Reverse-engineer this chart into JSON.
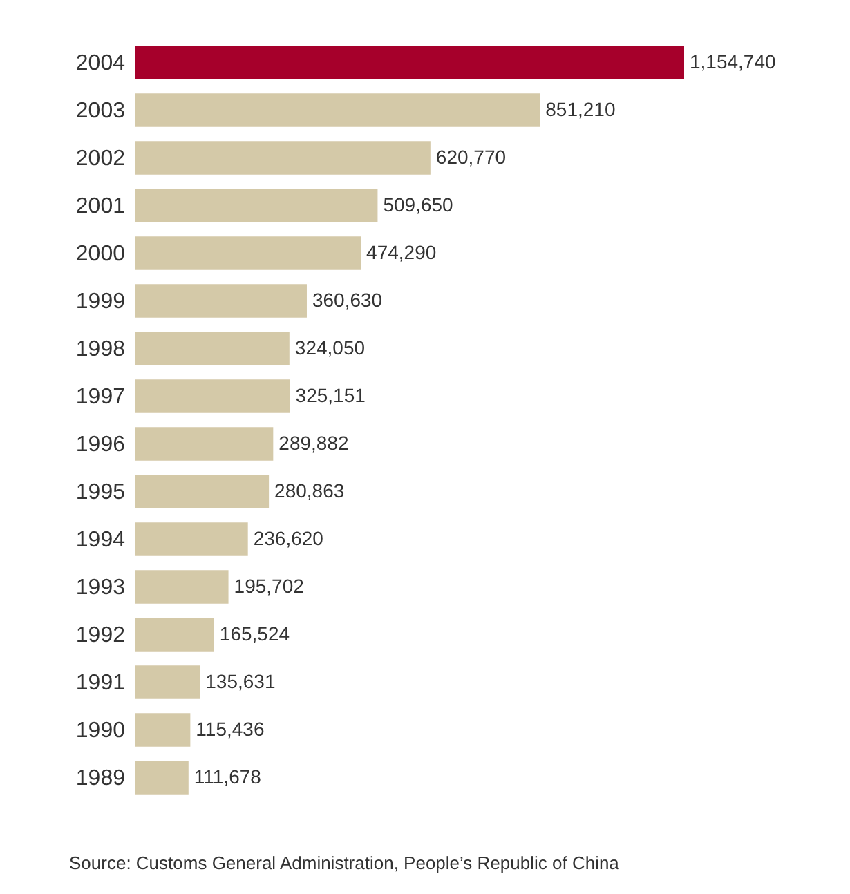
{
  "chart_data": {
    "type": "bar",
    "orientation": "horizontal",
    "categories": [
      "2004",
      "2003",
      "2002",
      "2001",
      "2000",
      "1999",
      "1998",
      "1997",
      "1996",
      "1995",
      "1994",
      "1993",
      "1992",
      "1991",
      "1990",
      "1989"
    ],
    "values": [
      1154740,
      851210,
      620770,
      509650,
      474290,
      360630,
      324050,
      325151,
      289882,
      280863,
      236620,
      195702,
      165524,
      135631,
      115436,
      111678
    ],
    "value_labels": [
      "1,154,740",
      "851,210",
      "620,770",
      "509,650",
      "474,290",
      "360,630",
      "324,050",
      "325,151",
      "289,882",
      "280,863",
      "236,620",
      "195,702",
      "165,524",
      "135,631",
      "115,436",
      "111,678"
    ],
    "colors": [
      "#a6002b",
      "#d4c9a8",
      "#d4c9a8",
      "#d4c9a8",
      "#d4c9a8",
      "#d4c9a8",
      "#d4c9a8",
      "#d4c9a8",
      "#d4c9a8",
      "#d4c9a8",
      "#d4c9a8",
      "#d4c9a8",
      "#d4c9a8",
      "#d4c9a8",
      "#d4c9a8",
      "#d4c9a8"
    ],
    "annotations": [
      "Source: Customs General Administration, People’s Republic of China"
    ]
  }
}
